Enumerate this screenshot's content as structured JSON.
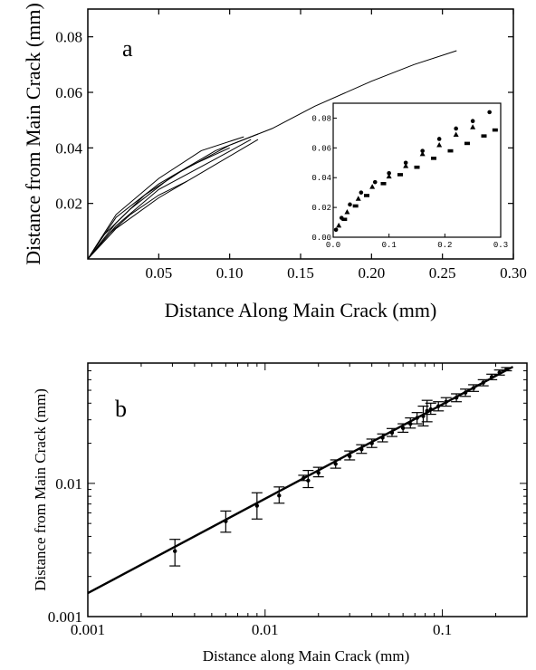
{
  "chart_data": [
    {
      "panel": "a",
      "type": "line",
      "xlabel": "Distance Along Main Crack (mm)",
      "ylabel": "Distance from Main Crack (mm)",
      "xlim": [
        0,
        0.3
      ],
      "ylim": [
        0,
        0.09
      ],
      "xticks": [
        0.05,
        0.1,
        0.15,
        0.2,
        0.25,
        0.3
      ],
      "xtick_labels": [
        "0.05",
        "0.10",
        "0.15",
        "0.20",
        "0.25",
        "0.30"
      ],
      "yticks": [
        0.02,
        0.04,
        0.06,
        0.08
      ],
      "ytick_labels": [
        "0.02",
        "0.04",
        "0.06",
        "0.08"
      ],
      "series": [
        {
          "x": [
            0,
            0.01,
            0.03,
            0.06,
            0.1,
            0.13,
            0.16,
            0.2,
            0.23,
            0.26
          ],
          "y": [
            0,
            0.008,
            0.018,
            0.03,
            0.041,
            0.047,
            0.055,
            0.064,
            0.07,
            0.075
          ]
        },
        {
          "x": [
            0,
            0.02,
            0.05,
            0.09,
            0.12
          ],
          "y": [
            0,
            0.015,
            0.027,
            0.039,
            0.045
          ]
        },
        {
          "x": [
            0,
            0.02,
            0.05,
            0.08,
            0.11
          ],
          "y": [
            0,
            0.016,
            0.029,
            0.039,
            0.044
          ]
        },
        {
          "x": [
            0,
            0.02,
            0.04,
            0.07,
            0.1
          ],
          "y": [
            0,
            0.013,
            0.023,
            0.033,
            0.04
          ]
        },
        {
          "x": [
            0,
            0.02,
            0.05,
            0.08,
            0.12
          ],
          "y": [
            0,
            0.011,
            0.022,
            0.031,
            0.043
          ]
        },
        {
          "x": [
            0,
            0.015,
            0.03,
            0.05,
            0.07
          ],
          "y": [
            0,
            0.009,
            0.016,
            0.023,
            0.028
          ]
        },
        {
          "x": [
            0,
            0.02,
            0.05,
            0.09,
            0.115
          ],
          "y": [
            0,
            0.012,
            0.025,
            0.036,
            0.043
          ]
        }
      ],
      "inset": {
        "type": "scatter",
        "xlim": [
          0,
          0.3
        ],
        "ylim": [
          0,
          0.09
        ],
        "xticks": [
          0.0,
          0.1,
          0.2,
          0.3
        ],
        "xtick_labels": [
          "0.0",
          "0.1",
          "0.2",
          "0.3"
        ],
        "yticks": [
          0.0,
          0.02,
          0.04,
          0.06,
          0.08
        ],
        "ytick_labels": [
          "0.00",
          "0.02",
          "0.04",
          "0.06",
          "0.08"
        ],
        "series": [
          {
            "marker": "circle",
            "x": [
              0.005,
              0.015,
              0.03,
              0.05,
              0.075,
              0.1,
              0.13,
              0.16,
              0.19,
              0.22,
              0.25,
              0.28
            ],
            "y": [
              0.005,
              0.013,
              0.022,
              0.03,
              0.037,
              0.043,
              0.05,
              0.058,
              0.066,
              0.073,
              0.078,
              0.084
            ]
          },
          {
            "marker": "triangle",
            "x": [
              0.01,
              0.025,
              0.045,
              0.07,
              0.1,
              0.13,
              0.16,
              0.19,
              0.22,
              0.25
            ],
            "y": [
              0.008,
              0.017,
              0.026,
              0.034,
              0.041,
              0.048,
              0.056,
              0.062,
              0.069,
              0.074
            ]
          },
          {
            "marker": "square",
            "x": [
              0.02,
              0.04,
              0.06,
              0.09,
              0.12,
              0.15,
              0.18,
              0.21,
              0.24,
              0.27,
              0.29
            ],
            "y": [
              0.012,
              0.021,
              0.028,
              0.036,
              0.042,
              0.047,
              0.053,
              0.058,
              0.063,
              0.068,
              0.072
            ]
          }
        ]
      }
    },
    {
      "panel": "b",
      "type": "scatter",
      "xscale": "log",
      "yscale": "log",
      "xlabel": "Distance along Main Crack (mm)",
      "ylabel": "Distance from Main Crack (mm)",
      "xlim": [
        0.001,
        0.3
      ],
      "ylim": [
        0.001,
        0.08
      ],
      "xticks": [
        0.001,
        0.01,
        0.1
      ],
      "xtick_labels": [
        "0.001",
        "0.01",
        "0.1"
      ],
      "yticks": [
        0.001,
        0.01
      ],
      "ytick_labels": [
        "0.001",
        "0.01"
      ],
      "fit_line": {
        "x": [
          0.001,
          0.25
        ],
        "y": [
          0.0015,
          0.075
        ]
      },
      "points": [
        {
          "x": 0.0031,
          "y": 0.0031,
          "lo": 0.0024,
          "hi": 0.0038
        },
        {
          "x": 0.006,
          "y": 0.0052,
          "lo": 0.0043,
          "hi": 0.0062
        },
        {
          "x": 0.009,
          "y": 0.0068,
          "lo": 0.0054,
          "hi": 0.0085
        },
        {
          "x": 0.012,
          "y": 0.0081,
          "lo": 0.0071,
          "hi": 0.0094
        },
        {
          "x": 0.0175,
          "y": 0.0105,
          "lo": 0.0093,
          "hi": 0.0125
        },
        {
          "x": 0.0165,
          "y": 0.011,
          "lo": 0.0105,
          "hi": 0.0115
        },
        {
          "x": 0.02,
          "y": 0.012,
          "lo": 0.0112,
          "hi": 0.0132
        },
        {
          "x": 0.025,
          "y": 0.014,
          "lo": 0.013,
          "hi": 0.015
        },
        {
          "x": 0.03,
          "y": 0.016,
          "lo": 0.015,
          "hi": 0.0175
        },
        {
          "x": 0.035,
          "y": 0.018,
          "lo": 0.0168,
          "hi": 0.0195
        },
        {
          "x": 0.04,
          "y": 0.02,
          "lo": 0.0186,
          "hi": 0.0215
        },
        {
          "x": 0.046,
          "y": 0.022,
          "lo": 0.0205,
          "hi": 0.0235
        },
        {
          "x": 0.052,
          "y": 0.024,
          "lo": 0.0225,
          "hi": 0.0258
        },
        {
          "x": 0.06,
          "y": 0.026,
          "lo": 0.0242,
          "hi": 0.028
        },
        {
          "x": 0.066,
          "y": 0.028,
          "lo": 0.026,
          "hi": 0.031
        },
        {
          "x": 0.072,
          "y": 0.031,
          "lo": 0.028,
          "hi": 0.034
        },
        {
          "x": 0.078,
          "y": 0.032,
          "lo": 0.027,
          "hi": 0.038
        },
        {
          "x": 0.082,
          "y": 0.035,
          "lo": 0.029,
          "hi": 0.042
        },
        {
          "x": 0.086,
          "y": 0.036,
          "lo": 0.033,
          "hi": 0.04
        },
        {
          "x": 0.095,
          "y": 0.038,
          "lo": 0.035,
          "hi": 0.041
        },
        {
          "x": 0.105,
          "y": 0.041,
          "lo": 0.038,
          "hi": 0.044
        },
        {
          "x": 0.12,
          "y": 0.044,
          "lo": 0.041,
          "hi": 0.047
        },
        {
          "x": 0.135,
          "y": 0.048,
          "lo": 0.045,
          "hi": 0.051
        },
        {
          "x": 0.15,
          "y": 0.052,
          "lo": 0.049,
          "hi": 0.055
        },
        {
          "x": 0.17,
          "y": 0.057,
          "lo": 0.054,
          "hi": 0.06
        },
        {
          "x": 0.19,
          "y": 0.063,
          "lo": 0.06,
          "hi": 0.066
        },
        {
          "x": 0.21,
          "y": 0.068,
          "lo": 0.065,
          "hi": 0.071
        },
        {
          "x": 0.23,
          "y": 0.072,
          "lo": 0.07,
          "hi": 0.074
        }
      ]
    }
  ]
}
